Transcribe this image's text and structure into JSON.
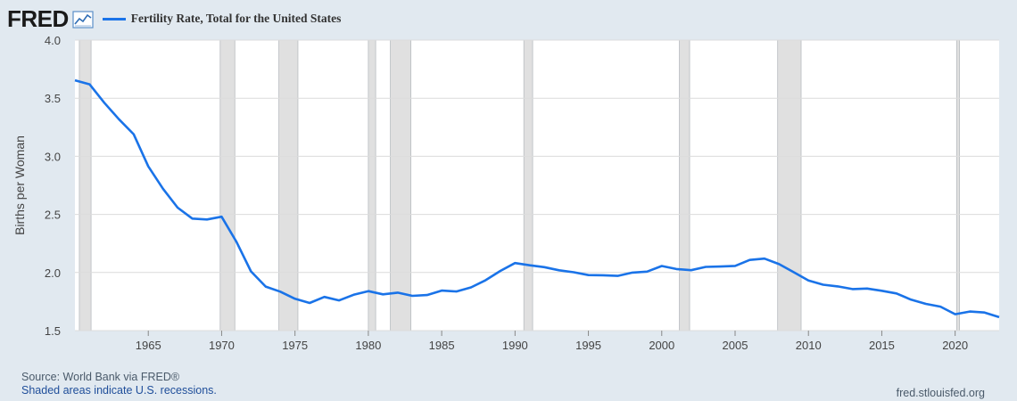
{
  "header": {
    "logo_text": "FRED",
    "series_title": "Fertility Rate, Total for the United States"
  },
  "colors": {
    "line": "#1a73e8",
    "recession_fill": "#e0e0e0",
    "recession_stroke": "#b8bcc0",
    "grid": "#dcdcdc",
    "plot_bg": "#ffffff",
    "page_bg": "#e1e9f0"
  },
  "footer": {
    "source": "Source: World Bank via FRED®",
    "recession_note": "Shaded areas indicate U.S. recessions.",
    "site": "fred.stlouisfed.org"
  },
  "chart_data": {
    "type": "line",
    "title": "Fertility Rate, Total for the United States",
    "xlabel": "",
    "ylabel": "Births per Woman",
    "xlim": [
      1960,
      2023
    ],
    "ylim": [
      1.5,
      4.0
    ],
    "yticks": [
      1.5,
      2.0,
      2.5,
      3.0,
      3.5,
      4.0
    ],
    "ytick_labels": [
      "1.5",
      "2.0",
      "2.5",
      "3.0",
      "3.5",
      "4.0"
    ],
    "xticks": [
      1965,
      1970,
      1975,
      1980,
      1985,
      1990,
      1995,
      2000,
      2005,
      2010,
      2015,
      2020
    ],
    "grid": true,
    "recessions": [
      [
        1960.3,
        1961.1
      ],
      [
        1969.9,
        1970.9
      ],
      [
        1973.9,
        1975.2
      ],
      [
        1980.0,
        1980.5
      ],
      [
        1981.5,
        1982.9
      ],
      [
        1990.6,
        1991.2
      ],
      [
        2001.2,
        2001.9
      ],
      [
        2007.9,
        2009.5
      ],
      [
        2020.1,
        2020.3
      ]
    ],
    "series": [
      {
        "name": "Fertility Rate, Total for the United States",
        "x": [
          1960,
          1961,
          1962,
          1963,
          1964,
          1965,
          1966,
          1967,
          1968,
          1969,
          1970,
          1971,
          1972,
          1973,
          1974,
          1975,
          1976,
          1977,
          1978,
          1979,
          1980,
          1981,
          1982,
          1983,
          1984,
          1985,
          1986,
          1987,
          1988,
          1989,
          1990,
          1991,
          1992,
          1993,
          1994,
          1995,
          1996,
          1997,
          1998,
          1999,
          2000,
          2001,
          2002,
          2003,
          2004,
          2005,
          2006,
          2007,
          2008,
          2009,
          2010,
          2011,
          2012,
          2013,
          2014,
          2015,
          2016,
          2017,
          2018,
          2019,
          2020,
          2021,
          2022,
          2023
        ],
        "values": [
          3.654,
          3.62,
          3.461,
          3.319,
          3.19,
          2.913,
          2.721,
          2.558,
          2.464,
          2.456,
          2.48,
          2.266,
          2.01,
          1.879,
          1.835,
          1.774,
          1.738,
          1.79,
          1.76,
          1.808,
          1.84,
          1.812,
          1.827,
          1.799,
          1.806,
          1.844,
          1.837,
          1.872,
          1.934,
          2.014,
          2.081,
          2.062,
          2.046,
          2.019,
          2.002,
          1.978,
          1.976,
          1.971,
          1.999,
          2.008,
          2.056,
          2.03,
          2.02,
          2.048,
          2.051,
          2.057,
          2.108,
          2.12,
          2.072,
          2.002,
          1.931,
          1.895,
          1.88,
          1.857,
          1.862,
          1.843,
          1.82,
          1.766,
          1.73,
          1.706,
          1.641,
          1.664,
          1.656,
          1.616
        ]
      }
    ]
  }
}
